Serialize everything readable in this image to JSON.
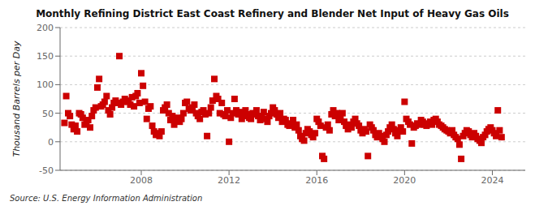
{
  "chart_data": {
    "type": "scatter",
    "title": "Monthly Refining District East Coast Refinery and Blender Net Input of Heavy Gas Oils",
    "ylabel": "Thousand Barrels per Day",
    "annotations": [
      "Source: U.S. Energy Information Administration"
    ],
    "color": "#cc0000",
    "marker": "square",
    "grid": "y",
    "xlim": [
      2004.3,
      2025.5
    ],
    "xticks": [
      2008,
      2012,
      2016,
      2020,
      2024
    ],
    "ylim": [
      -50,
      200
    ],
    "yticks": [
      -50,
      0,
      50,
      100,
      150,
      200
    ],
    "x": [
      2004.5,
      2004.58,
      2004.67,
      2004.75,
      2004.83,
      2004.92,
      2005.0,
      2005.08,
      2005.17,
      2005.25,
      2005.33,
      2005.42,
      2005.5,
      2005.58,
      2005.67,
      2005.75,
      2005.83,
      2005.92,
      2006.0,
      2006.08,
      2006.17,
      2006.25,
      2006.33,
      2006.42,
      2006.5,
      2006.58,
      2006.67,
      2006.75,
      2006.83,
      2006.92,
      2007.0,
      2007.08,
      2007.17,
      2007.25,
      2007.33,
      2007.42,
      2007.5,
      2007.58,
      2007.67,
      2007.75,
      2007.83,
      2007.92,
      2008.0,
      2008.08,
      2008.17,
      2008.25,
      2008.33,
      2008.42,
      2008.5,
      2008.58,
      2008.67,
      2008.75,
      2008.83,
      2008.92,
      2009.0,
      2009.08,
      2009.17,
      2009.25,
      2009.33,
      2009.42,
      2009.5,
      2009.58,
      2009.67,
      2009.75,
      2009.83,
      2009.92,
      2010.0,
      2010.08,
      2010.17,
      2010.25,
      2010.33,
      2010.42,
      2010.5,
      2010.58,
      2010.67,
      2010.75,
      2010.83,
      2010.92,
      2011.0,
      2011.08,
      2011.17,
      2011.25,
      2011.33,
      2011.42,
      2011.5,
      2011.58,
      2011.67,
      2011.75,
      2011.83,
      2011.92,
      2012.0,
      2012.08,
      2012.17,
      2012.25,
      2012.33,
      2012.42,
      2012.5,
      2012.58,
      2012.67,
      2012.75,
      2012.83,
      2012.92,
      2013.0,
      2013.08,
      2013.17,
      2013.25,
      2013.33,
      2013.42,
      2013.5,
      2013.58,
      2013.67,
      2013.75,
      2013.83,
      2013.92,
      2014.0,
      2014.08,
      2014.17,
      2014.25,
      2014.33,
      2014.42,
      2014.5,
      2014.58,
      2014.67,
      2014.75,
      2014.83,
      2014.92,
      2015.0,
      2015.08,
      2015.17,
      2015.25,
      2015.33,
      2015.42,
      2015.5,
      2015.58,
      2015.67,
      2015.75,
      2015.83,
      2015.92,
      2016.0,
      2016.08,
      2016.17,
      2016.25,
      2016.33,
      2016.42,
      2016.5,
      2016.58,
      2016.67,
      2016.75,
      2016.83,
      2016.92,
      2017.0,
      2017.08,
      2017.17,
      2017.25,
      2017.33,
      2017.42,
      2017.5,
      2017.58,
      2017.67,
      2017.75,
      2017.83,
      2017.92,
      2018.0,
      2018.08,
      2018.17,
      2018.25,
      2018.33,
      2018.42,
      2018.5,
      2018.58,
      2018.67,
      2018.75,
      2018.83,
      2018.92,
      2019.0,
      2019.08,
      2019.17,
      2019.25,
      2019.33,
      2019.42,
      2019.5,
      2019.58,
      2019.67,
      2019.75,
      2019.83,
      2019.92,
      2020.0,
      2020.08,
      2020.17,
      2020.25,
      2020.33,
      2020.42,
      2020.5,
      2020.58,
      2020.67,
      2020.75,
      2020.83,
      2020.92,
      2021.0,
      2021.08,
      2021.17,
      2021.25,
      2021.33,
      2021.42,
      2021.5,
      2021.58,
      2021.67,
      2021.75,
      2021.83,
      2021.92,
      2022.0,
      2022.08,
      2022.17,
      2022.25,
      2022.33,
      2022.42,
      2022.5,
      2022.58,
      2022.67,
      2022.75,
      2022.83,
      2022.92,
      2023.0,
      2023.08,
      2023.17,
      2023.25,
      2023.33,
      2023.42,
      2023.5,
      2023.58,
      2023.67,
      2023.75,
      2023.83,
      2023.92,
      2024.0,
      2024.08,
      2024.17,
      2024.25,
      2024.33,
      2024.42
    ],
    "values": [
      33,
      80,
      50,
      45,
      30,
      22,
      28,
      18,
      50,
      48,
      42,
      30,
      35,
      38,
      25,
      45,
      55,
      60,
      95,
      110,
      62,
      65,
      70,
      80,
      55,
      48,
      60,
      68,
      72,
      68,
      150,
      65,
      70,
      75,
      72,
      70,
      65,
      78,
      62,
      80,
      85,
      68,
      120,
      98,
      70,
      40,
      58,
      62,
      28,
      18,
      12,
      15,
      10,
      18,
      55,
      60,
      65,
      50,
      38,
      45,
      30,
      38,
      42,
      35,
      40,
      50,
      68,
      70,
      58,
      55,
      60,
      65,
      50,
      45,
      40,
      52,
      55,
      48,
      10,
      50,
      60,
      72,
      110,
      80,
      75,
      50,
      68,
      48,
      45,
      55,
      0,
      42,
      50,
      75,
      55,
      48,
      52,
      40,
      45,
      55,
      48,
      42,
      40,
      50,
      48,
      55,
      45,
      38,
      42,
      52,
      40,
      35,
      45,
      50,
      60,
      55,
      48,
      42,
      50,
      35,
      40,
      38,
      30,
      28,
      32,
      38,
      25,
      30,
      20,
      10,
      5,
      2,
      15,
      22,
      18,
      12,
      8,
      15,
      40,
      35,
      28,
      -25,
      -30,
      25,
      30,
      20,
      48,
      55,
      45,
      50,
      38,
      45,
      50,
      35,
      28,
      22,
      30,
      25,
      35,
      40,
      32,
      28,
      20,
      15,
      22,
      18,
      -25,
      30,
      25,
      20,
      12,
      8,
      15,
      10,
      5,
      0,
      12,
      18,
      25,
      30,
      22,
      15,
      10,
      20,
      25,
      18,
      70,
      40,
      35,
      30,
      -3,
      25,
      28,
      32,
      30,
      38,
      35,
      30,
      28,
      32,
      35,
      30,
      38,
      40,
      35,
      30,
      28,
      25,
      22,
      20,
      18,
      15,
      20,
      12,
      8,
      5,
      -5,
      -30,
      10,
      15,
      20,
      18,
      12,
      8,
      15,
      10,
      5,
      2,
      -2,
      8,
      12,
      18,
      22,
      25,
      20,
      15,
      10,
      55,
      20,
      8
    ]
  }
}
